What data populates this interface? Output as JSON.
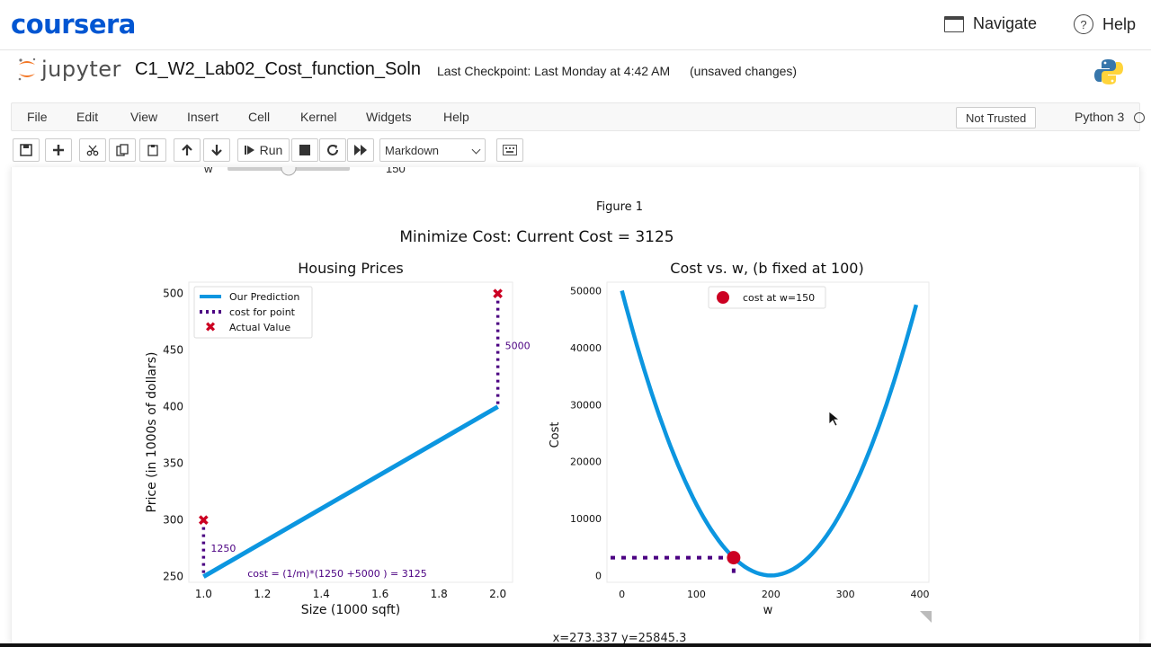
{
  "coursera": {
    "logo": "coursera",
    "navigate": "Navigate",
    "help": "Help"
  },
  "jupyter": {
    "logo_text": "jupyter",
    "notebook_title": "C1_W2_Lab02_Cost_function_Soln",
    "checkpoint": "Last Checkpoint: Last Monday at 4:42 AM",
    "unsaved": "(unsaved changes)"
  },
  "menu": {
    "items": [
      "File",
      "Edit",
      "View",
      "Insert",
      "Cell",
      "Kernel",
      "Widgets",
      "Help"
    ],
    "not_trusted": "Not Trusted",
    "kernel": "Python 3"
  },
  "toolbar": {
    "run_label": "Run",
    "cell_type": "Markdown"
  },
  "widget": {
    "label": "w",
    "value": "150",
    "fraction": 0.5
  },
  "figure": {
    "label": "Figure 1",
    "suptitle": "Minimize Cost: Current Cost = 3125",
    "status": "x=273.337 y=25845.3"
  },
  "chart_data": [
    {
      "type": "line",
      "title": "Housing Prices",
      "xlabel": "Size (1000 sqft)",
      "ylabel": "Price (in 1000s of dollars)",
      "xlim": [
        0.95,
        2.05
      ],
      "ylim": [
        245,
        510
      ],
      "xticks": [
        "1.0",
        "1.2",
        "1.4",
        "1.6",
        "1.8",
        "2.0"
      ],
      "yticks": [
        "250",
        "300",
        "350",
        "400",
        "450",
        "500"
      ],
      "prediction": {
        "name": "Our Prediction",
        "x": [
          1.0,
          2.0
        ],
        "y": [
          250,
          400
        ],
        "color": "#0c96e0"
      },
      "actual": {
        "name": "Actual Value",
        "x": [
          1.0,
          2.0
        ],
        "y": [
          300,
          500
        ],
        "color": "#cc0022"
      },
      "cost_lines": {
        "name": "cost for point",
        "color": "#4b0082",
        "labels": [
          "1250",
          "5000"
        ]
      },
      "annotation": "cost = (1/m)*(1250 +5000 ) = 3125",
      "legend": "top-left"
    },
    {
      "type": "line",
      "title": "Cost vs. w, (b fixed at 100)",
      "xlabel": "w",
      "ylabel": "Cost",
      "xlim": [
        -20,
        412
      ],
      "ylim": [
        -1200,
        51500
      ],
      "xticks": [
        "0",
        "100",
        "200",
        "300",
        "400"
      ],
      "yticks": [
        "0",
        "10000",
        "20000",
        "30000",
        "40000",
        "50000"
      ],
      "curve": {
        "color": "#0c96e0",
        "w_min": 200,
        "k": 1.25,
        "from": 0,
        "to": 395
      },
      "marker": {
        "name": "cost at w=150",
        "w": 150,
        "cost": 3125,
        "color": "#cc0022"
      },
      "guide_color": "#4b0082",
      "legend": "top-center"
    }
  ]
}
